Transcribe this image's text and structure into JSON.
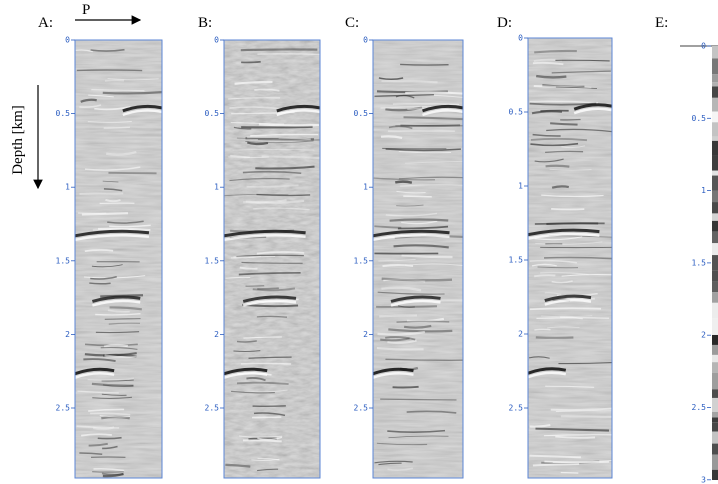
{
  "figure": {
    "direction_label": "P",
    "depth_label": "Depth [km]",
    "panels": [
      {
        "label": "A:",
        "ticks": [
          "0",
          "0.5",
          "1",
          "1.5",
          "2",
          "2.5"
        ]
      },
      {
        "label": "B:",
        "ticks": [
          "0",
          "0.5",
          "1",
          "1.5",
          "2",
          "2.5"
        ]
      },
      {
        "label": "C:",
        "ticks": [
          "0",
          "0.5",
          "1",
          "1.5",
          "2",
          "2.5"
        ]
      },
      {
        "label": "D:",
        "ticks": [
          "0",
          "0.5",
          "1",
          "1.5",
          "2",
          "2.5"
        ]
      },
      {
        "label": "E:",
        "ticks": [
          "0",
          "0.5",
          "1",
          "1.5",
          "2",
          "2.5",
          "3"
        ]
      }
    ]
  }
}
